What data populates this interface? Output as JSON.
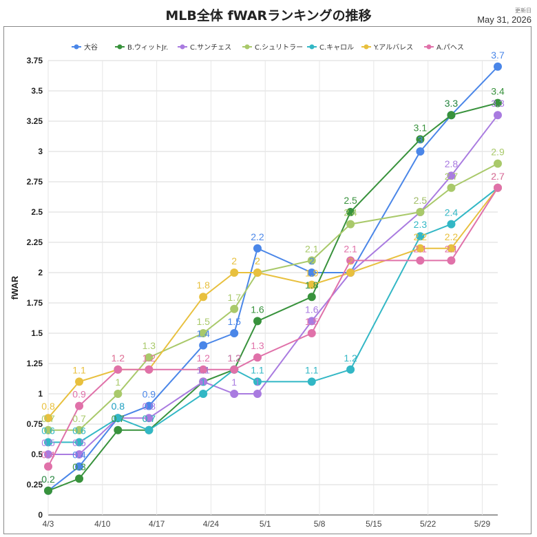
{
  "header": {
    "title": "MLB全体 fWARランキングの推移",
    "updated_label": "更新日",
    "updated_date": "May 31, 2026"
  },
  "chart_data": {
    "type": "line",
    "title": "MLB全体 fWARランキングの推移",
    "xlabel": "",
    "ylabel": "fWAR",
    "ylim": [
      0,
      3.75
    ],
    "yticks": [
      0,
      0.25,
      0.5,
      0.75,
      1,
      1.25,
      1.5,
      1.75,
      2,
      2.25,
      2.5,
      2.75,
      3,
      3.25,
      3.5,
      3.75
    ],
    "x_tick_labels": [
      "4/3",
      "4/10",
      "4/17",
      "4/24",
      "5/1",
      "5/8",
      "5/15",
      "5/22",
      "5/29"
    ],
    "x_tick_day_offsets": [
      0,
      7,
      14,
      21,
      28,
      35,
      42,
      49,
      56
    ],
    "x_day_offsets": [
      0,
      4,
      9,
      13,
      20,
      24,
      27,
      34,
      39,
      48,
      52,
      58
    ],
    "grid": true,
    "legend_position": "top",
    "series": [
      {
        "name": "大谷",
        "color": "#4a86e8",
        "values": [
          0.2,
          0.4,
          0.8,
          0.9,
          1.4,
          1.5,
          2.2,
          2.0,
          2.0,
          3.0,
          3.3,
          3.7
        ]
      },
      {
        "name": "B.ウィットJr.",
        "color": "#38923c",
        "values": [
          0.2,
          0.3,
          0.7,
          0.7,
          1.1,
          1.2,
          1.6,
          1.8,
          2.5,
          3.1,
          3.3,
          3.4
        ]
      },
      {
        "name": "C.サンチェス",
        "color": "#a97be0",
        "values": [
          0.5,
          0.5,
          0.8,
          0.8,
          1.1,
          1.0,
          1.0,
          1.6,
          2.0,
          2.5,
          2.8,
          3.3
        ]
      },
      {
        "name": "C.シュリトラー",
        "color": "#a9c96a",
        "values": [
          0.7,
          0.7,
          1.0,
          1.3,
          1.5,
          1.7,
          2.0,
          2.1,
          2.4,
          2.5,
          2.7,
          2.9
        ]
      },
      {
        "name": "C.キャロル",
        "color": "#32b7c5",
        "values": [
          0.6,
          0.6,
          0.8,
          0.7,
          1.0,
          1.2,
          1.1,
          1.1,
          1.2,
          2.3,
          2.4,
          2.7
        ]
      },
      {
        "name": "Y.アルバレス",
        "color": "#e8c03e",
        "values": [
          0.8,
          1.1,
          1.2,
          1.2,
          1.8,
          2.0,
          2.0,
          1.9,
          2.0,
          2.2,
          2.2,
          2.7
        ]
      },
      {
        "name": "A.パヘス",
        "color": "#e071a9",
        "values": [
          0.4,
          0.9,
          1.2,
          1.2,
          1.2,
          1.2,
          1.3,
          1.5,
          2.1,
          2.1,
          2.1,
          2.7
        ]
      }
    ]
  }
}
